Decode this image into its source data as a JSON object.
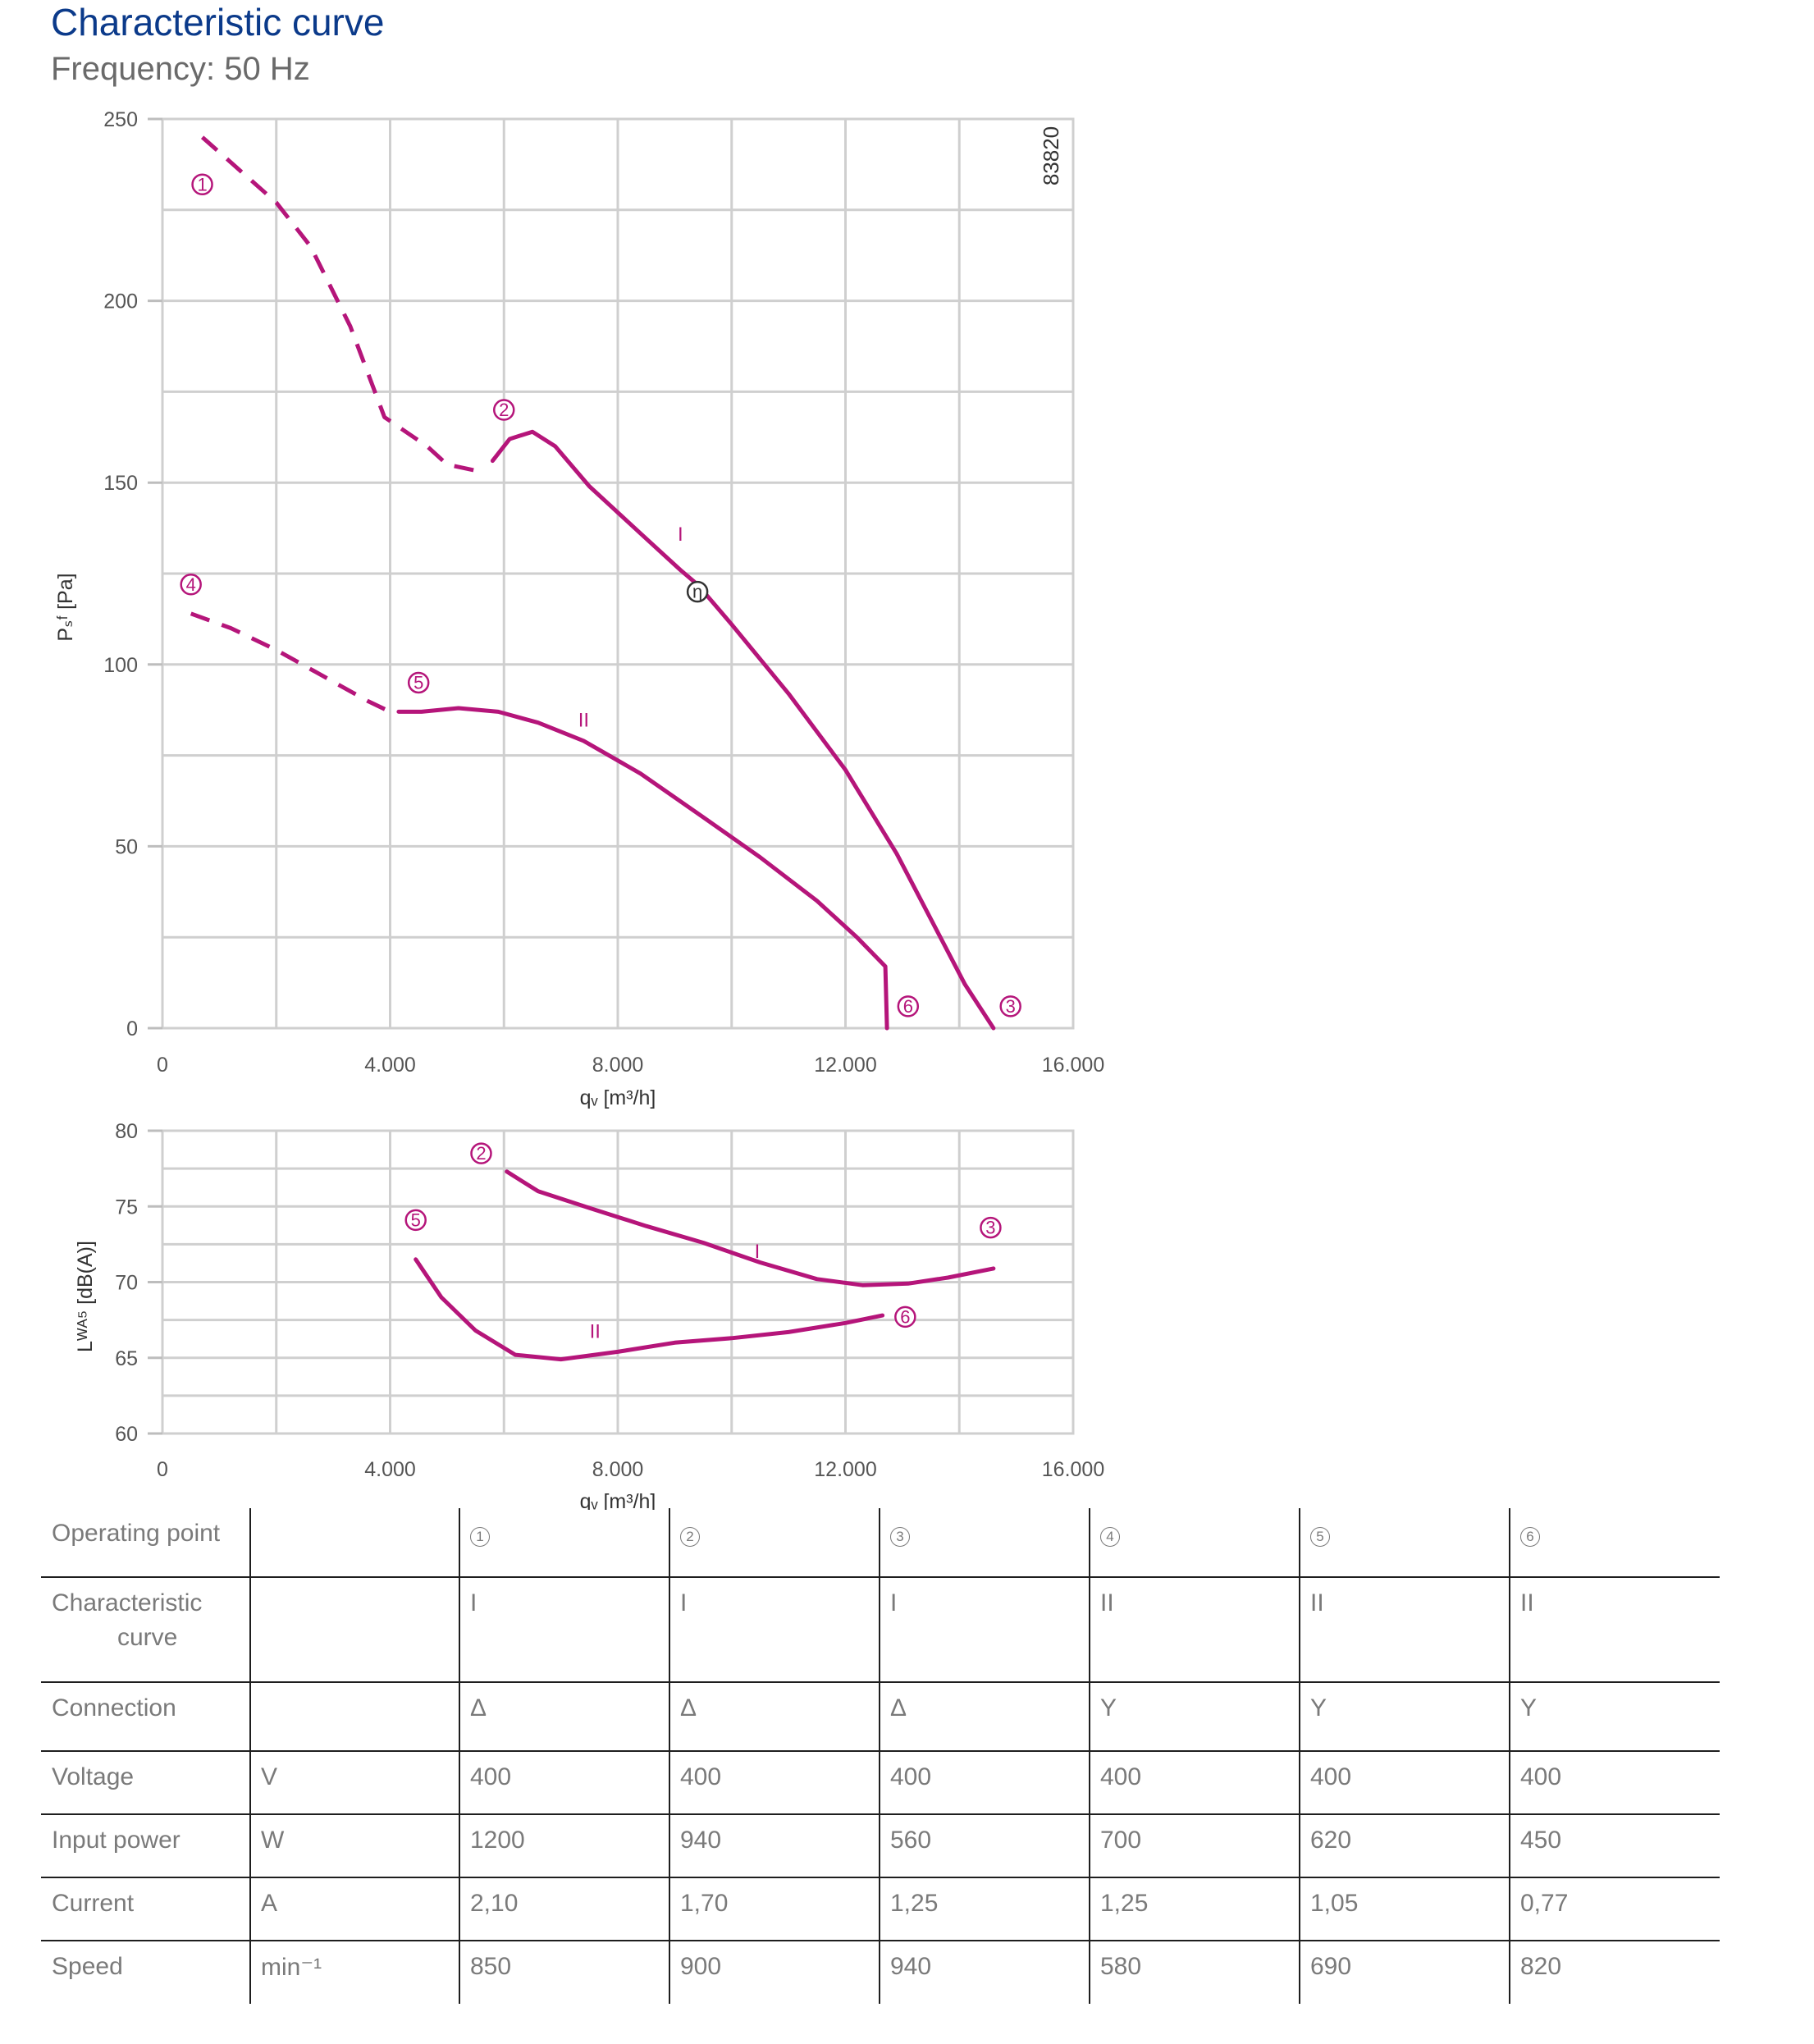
{
  "header": {
    "title": "Characteristic curve",
    "subtitle": "Frequency: 50 Hz"
  },
  "chart_data": [
    {
      "type": "line",
      "xlabel": "qᵥ [m³/h]",
      "ylabel": "Pₛᶠ [Pa]",
      "xlim": [
        0,
        16000
      ],
      "ylim": [
        0,
        250
      ],
      "xticks": [
        0,
        4000,
        8000,
        12000,
        16000
      ],
      "xtick_labels": [
        "0",
        "4.000",
        "8.000",
        "12.000",
        "16.000"
      ],
      "yticks": [
        0,
        50,
        100,
        150,
        200,
        250
      ],
      "ytick_labels": [
        "0",
        "50",
        "100",
        "150",
        "200",
        "250"
      ],
      "grid": true,
      "image_id": "83820",
      "series": [
        {
          "name": "I",
          "color": "#b5157a",
          "dashed_segment": [
            [
              700,
              245
            ],
            [
              2000,
              227
            ],
            [
              2600,
              215
            ],
            [
              3300,
              193
            ],
            [
              3900,
              168
            ],
            [
              4650,
              160
            ],
            [
              5000,
              155
            ],
            [
              5600,
              153
            ]
          ],
          "solid_segment": [
            [
              5800,
              156
            ],
            [
              6100,
              162
            ],
            [
              6500,
              164
            ],
            [
              6900,
              160
            ],
            [
              7500,
              149
            ],
            [
              8400,
              136
            ],
            [
              9100,
              126
            ],
            [
              9400,
              122
            ],
            [
              10000,
              111
            ],
            [
              11000,
              92
            ],
            [
              12000,
              71
            ],
            [
              12900,
              48
            ],
            [
              13600,
              27
            ],
            [
              14100,
              12
            ],
            [
              14600,
              0
            ]
          ]
        },
        {
          "name": "II",
          "color": "#b5157a",
          "dashed_segment": [
            [
              500,
              114
            ],
            [
              1200,
              110
            ],
            [
              2000,
              104
            ],
            [
              2800,
              97
            ],
            [
              3600,
              90
            ],
            [
              4000,
              87
            ]
          ],
          "solid_segment": [
            [
              4150,
              87
            ],
            [
              4550,
              87
            ],
            [
              5200,
              88
            ],
            [
              5900,
              87
            ],
            [
              6600,
              84
            ],
            [
              7400,
              79
            ],
            [
              8400,
              70
            ],
            [
              9500,
              58
            ],
            [
              10500,
              47
            ],
            [
              11500,
              35
            ],
            [
              12200,
              25
            ],
            [
              12700,
              17
            ],
            [
              12730,
              0
            ]
          ]
        }
      ],
      "annotations": [
        {
          "label": "1",
          "x": 700,
          "y": 232
        },
        {
          "label": "2",
          "x": 6000,
          "y": 170
        },
        {
          "label": "3",
          "x": 14900,
          "y": 6
        },
        {
          "label": "4",
          "x": 500,
          "y": 122
        },
        {
          "label": "5",
          "x": 4500,
          "y": 95
        },
        {
          "label": "6",
          "x": 13100,
          "y": 6
        },
        {
          "label": "η",
          "x": 9400,
          "y": 120
        }
      ],
      "curve_labels": [
        {
          "text": "I",
          "x": 9100,
          "y": 136
        },
        {
          "text": "II",
          "x": 7400,
          "y": 85
        }
      ]
    },
    {
      "type": "line",
      "xlabel": "qᵥ [m³/h]",
      "ylabel": "Lᵂᴬ⁵ [dB(A)]",
      "xlim": [
        0,
        16000
      ],
      "ylim": [
        60,
        80
      ],
      "xticks": [
        0,
        4000,
        8000,
        12000,
        16000
      ],
      "xtick_labels": [
        "0",
        "4.000",
        "8.000",
        "12.000",
        "16.000"
      ],
      "yticks": [
        60,
        65,
        70,
        75,
        80
      ],
      "ytick_labels": [
        "60",
        "65",
        "70",
        "75",
        "80"
      ],
      "grid": true,
      "series": [
        {
          "name": "I",
          "color": "#b5157a",
          "points": [
            [
              6050,
              77.3
            ],
            [
              6600,
              76.0
            ],
            [
              7500,
              74.9
            ],
            [
              8500,
              73.7
            ],
            [
              9500,
              72.6
            ],
            [
              10500,
              71.3
            ],
            [
              11500,
              70.2
            ],
            [
              12300,
              69.8
            ],
            [
              13100,
              69.9
            ],
            [
              13800,
              70.3
            ],
            [
              14600,
              70.9
            ]
          ]
        },
        {
          "name": "II",
          "color": "#b5157a",
          "points": [
            [
              4450,
              71.5
            ],
            [
              4900,
              69.0
            ],
            [
              5500,
              66.8
            ],
            [
              6200,
              65.2
            ],
            [
              7000,
              64.9
            ],
            [
              8000,
              65.4
            ],
            [
              9000,
              66.0
            ],
            [
              10000,
              66.3
            ],
            [
              11000,
              66.7
            ],
            [
              12000,
              67.3
            ],
            [
              12650,
              67.8
            ]
          ]
        }
      ],
      "annotations": [
        {
          "label": "2",
          "x": 5600,
          "y": 78.5
        },
        {
          "label": "5",
          "x": 4450,
          "y": 74.1
        },
        {
          "label": "3",
          "x": 14550,
          "y": 73.6
        },
        {
          "label": "6",
          "x": 13050,
          "y": 67.7
        }
      ],
      "curve_labels": [
        {
          "text": "I",
          "x": 10450,
          "y": 72.1
        },
        {
          "text": "II",
          "x": 7600,
          "y": 66.8
        }
      ]
    }
  ],
  "table": {
    "rows": [
      {
        "label": "Operating point",
        "unit": "",
        "values": [
          "1",
          "2",
          "3",
          "4",
          "5",
          "6"
        ]
      },
      {
        "label": "Characteristic",
        "label2": "curve",
        "unit": "",
        "values": [
          "I",
          "I",
          "I",
          "II",
          "II",
          "II"
        ]
      },
      {
        "label": "Connection",
        "unit": "",
        "values": [
          "Δ",
          "Δ",
          "Δ",
          "Y",
          "Y",
          "Y"
        ]
      },
      {
        "label": "Voltage",
        "unit": "V",
        "values": [
          "400",
          "400",
          "400",
          "400",
          "400",
          "400"
        ]
      },
      {
        "label": "Input power",
        "unit": "W",
        "values": [
          "1200",
          "940",
          "560",
          "700",
          "620",
          "450"
        ]
      },
      {
        "label": "Current",
        "unit": "A",
        "values": [
          "2,10",
          "1,70",
          "1,25",
          "1,25",
          "1,05",
          "0,77"
        ]
      },
      {
        "label": "Speed",
        "unit": "min⁻¹",
        "values": [
          "850",
          "900",
          "940",
          "580",
          "690",
          "820"
        ]
      }
    ]
  }
}
